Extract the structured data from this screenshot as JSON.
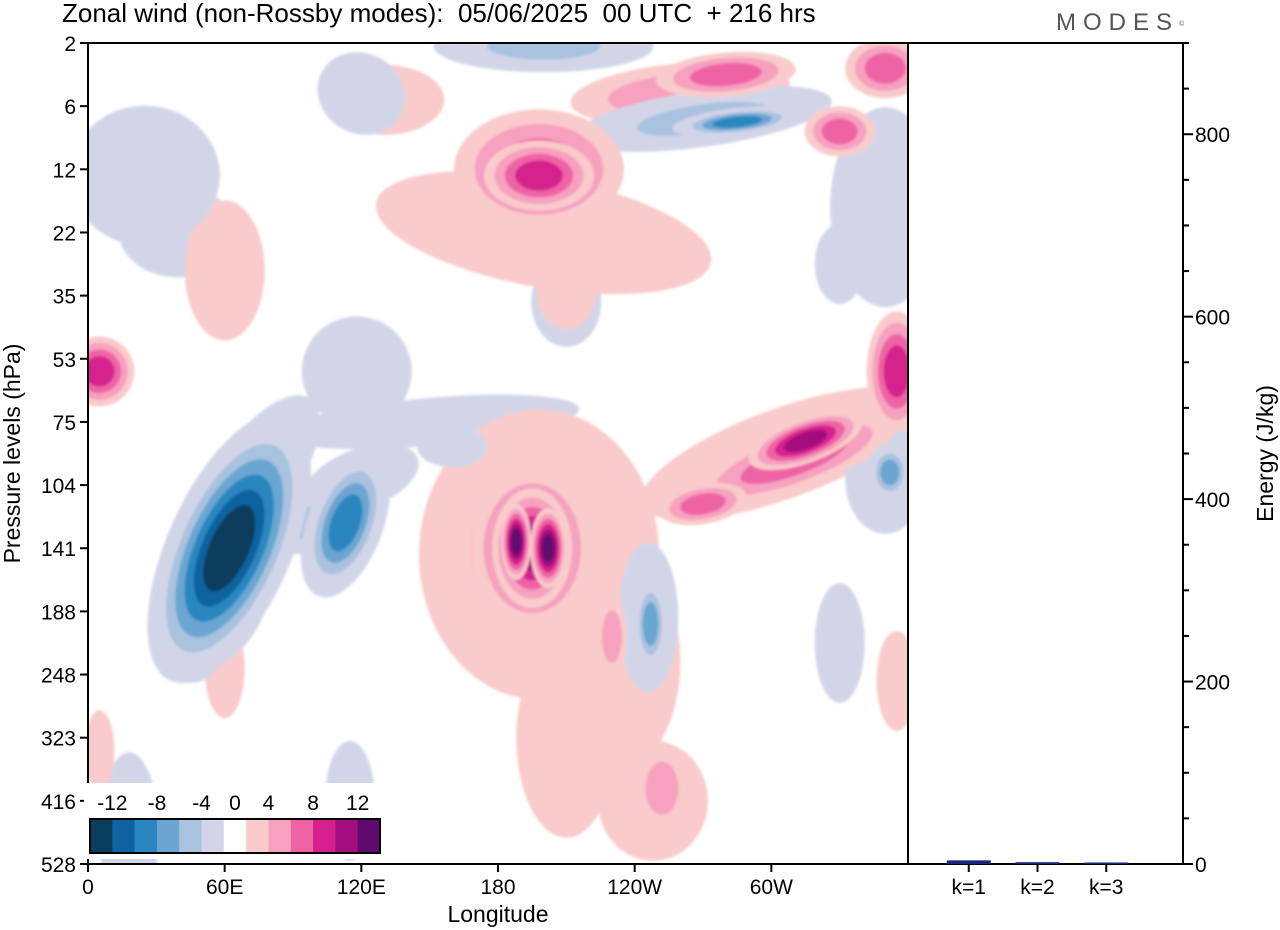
{
  "header": {
    "title": "Zonal wind (non-Rossby modes):  05/06/2025  00 UTC  + 216 hrs",
    "logo": "MODES",
    "logo_mark": "©"
  },
  "chart_data": [
    {
      "type": "heatmap",
      "title": "Zonal wind (non-Rossby modes):  05/06/2025  00 UTC  + 216 hrs",
      "xlabel": "Longitude",
      "ylabel": "Pressure levels (hPa)",
      "x_ticks": [
        "0",
        "60E",
        "120E",
        "180",
        "120W",
        "60W"
      ],
      "x_tick_degrees": [
        0,
        60,
        120,
        180,
        240,
        300
      ],
      "xlim_degrees_east": [
        0,
        360
      ],
      "y_ticks": [
        "2",
        "6",
        "12",
        "22",
        "35",
        "53",
        "75",
        "104",
        "141",
        "188",
        "248",
        "323",
        "416",
        "528"
      ],
      "y_scale": "level index (non-linear pressure)",
      "colorbar": {
        "labels": [
          "-12",
          "-8",
          "-4",
          "0",
          "4",
          "8",
          "12"
        ],
        "levels": [
          -14,
          -12,
          -10,
          -8,
          -6,
          -4,
          -2,
          2,
          4,
          6,
          8,
          10,
          12,
          14
        ],
        "colors": [
          "#0b3d5c",
          "#0d64a0",
          "#2a86bf",
          "#6aa6d1",
          "#a9c2df",
          "#d2d5e8",
          "#ffffff",
          "#f9cbcb",
          "#f6a1bf",
          "#ee63a4",
          "#d6208d",
          "#a40d7e",
          "#5e0a6e"
        ],
        "placement": "bottom-left"
      },
      "features": [
        {
          "sign": "negative",
          "peak": -14,
          "lon": 62,
          "level": "141",
          "label": "tilted easterly jet"
        },
        {
          "sign": "negative",
          "peak": -10,
          "lon": 113,
          "level": "114",
          "label": "secondary easterly core"
        },
        {
          "sign": "positive",
          "peak": 12,
          "lon": 198,
          "level": "141",
          "label": "westerly core"
        },
        {
          "sign": "positive",
          "peak": 10,
          "lon": 310,
          "level": "75",
          "label": "westerly band"
        },
        {
          "sign": "positive",
          "peak": 8,
          "lon": 198,
          "level": "12",
          "label": "upper westerly patch"
        },
        {
          "sign": "negative",
          "peak": -8,
          "lon": 245,
          "level": "188",
          "label": "lower easterly patch"
        },
        {
          "sign": "negative",
          "peak": -8,
          "lon": 350,
          "level": "104",
          "label": "eastern easterly patch"
        }
      ]
    },
    {
      "type": "bar",
      "ylabel": "Energy (J/kg)",
      "ylim": [
        0,
        900
      ],
      "y_ticks": [
        "0",
        "200",
        "400",
        "600",
        "800"
      ],
      "categories": [
        "k=1",
        "k=2",
        "k=3"
      ],
      "values": [
        4,
        2,
        1
      ],
      "bar_color": "#1a237e"
    }
  ]
}
